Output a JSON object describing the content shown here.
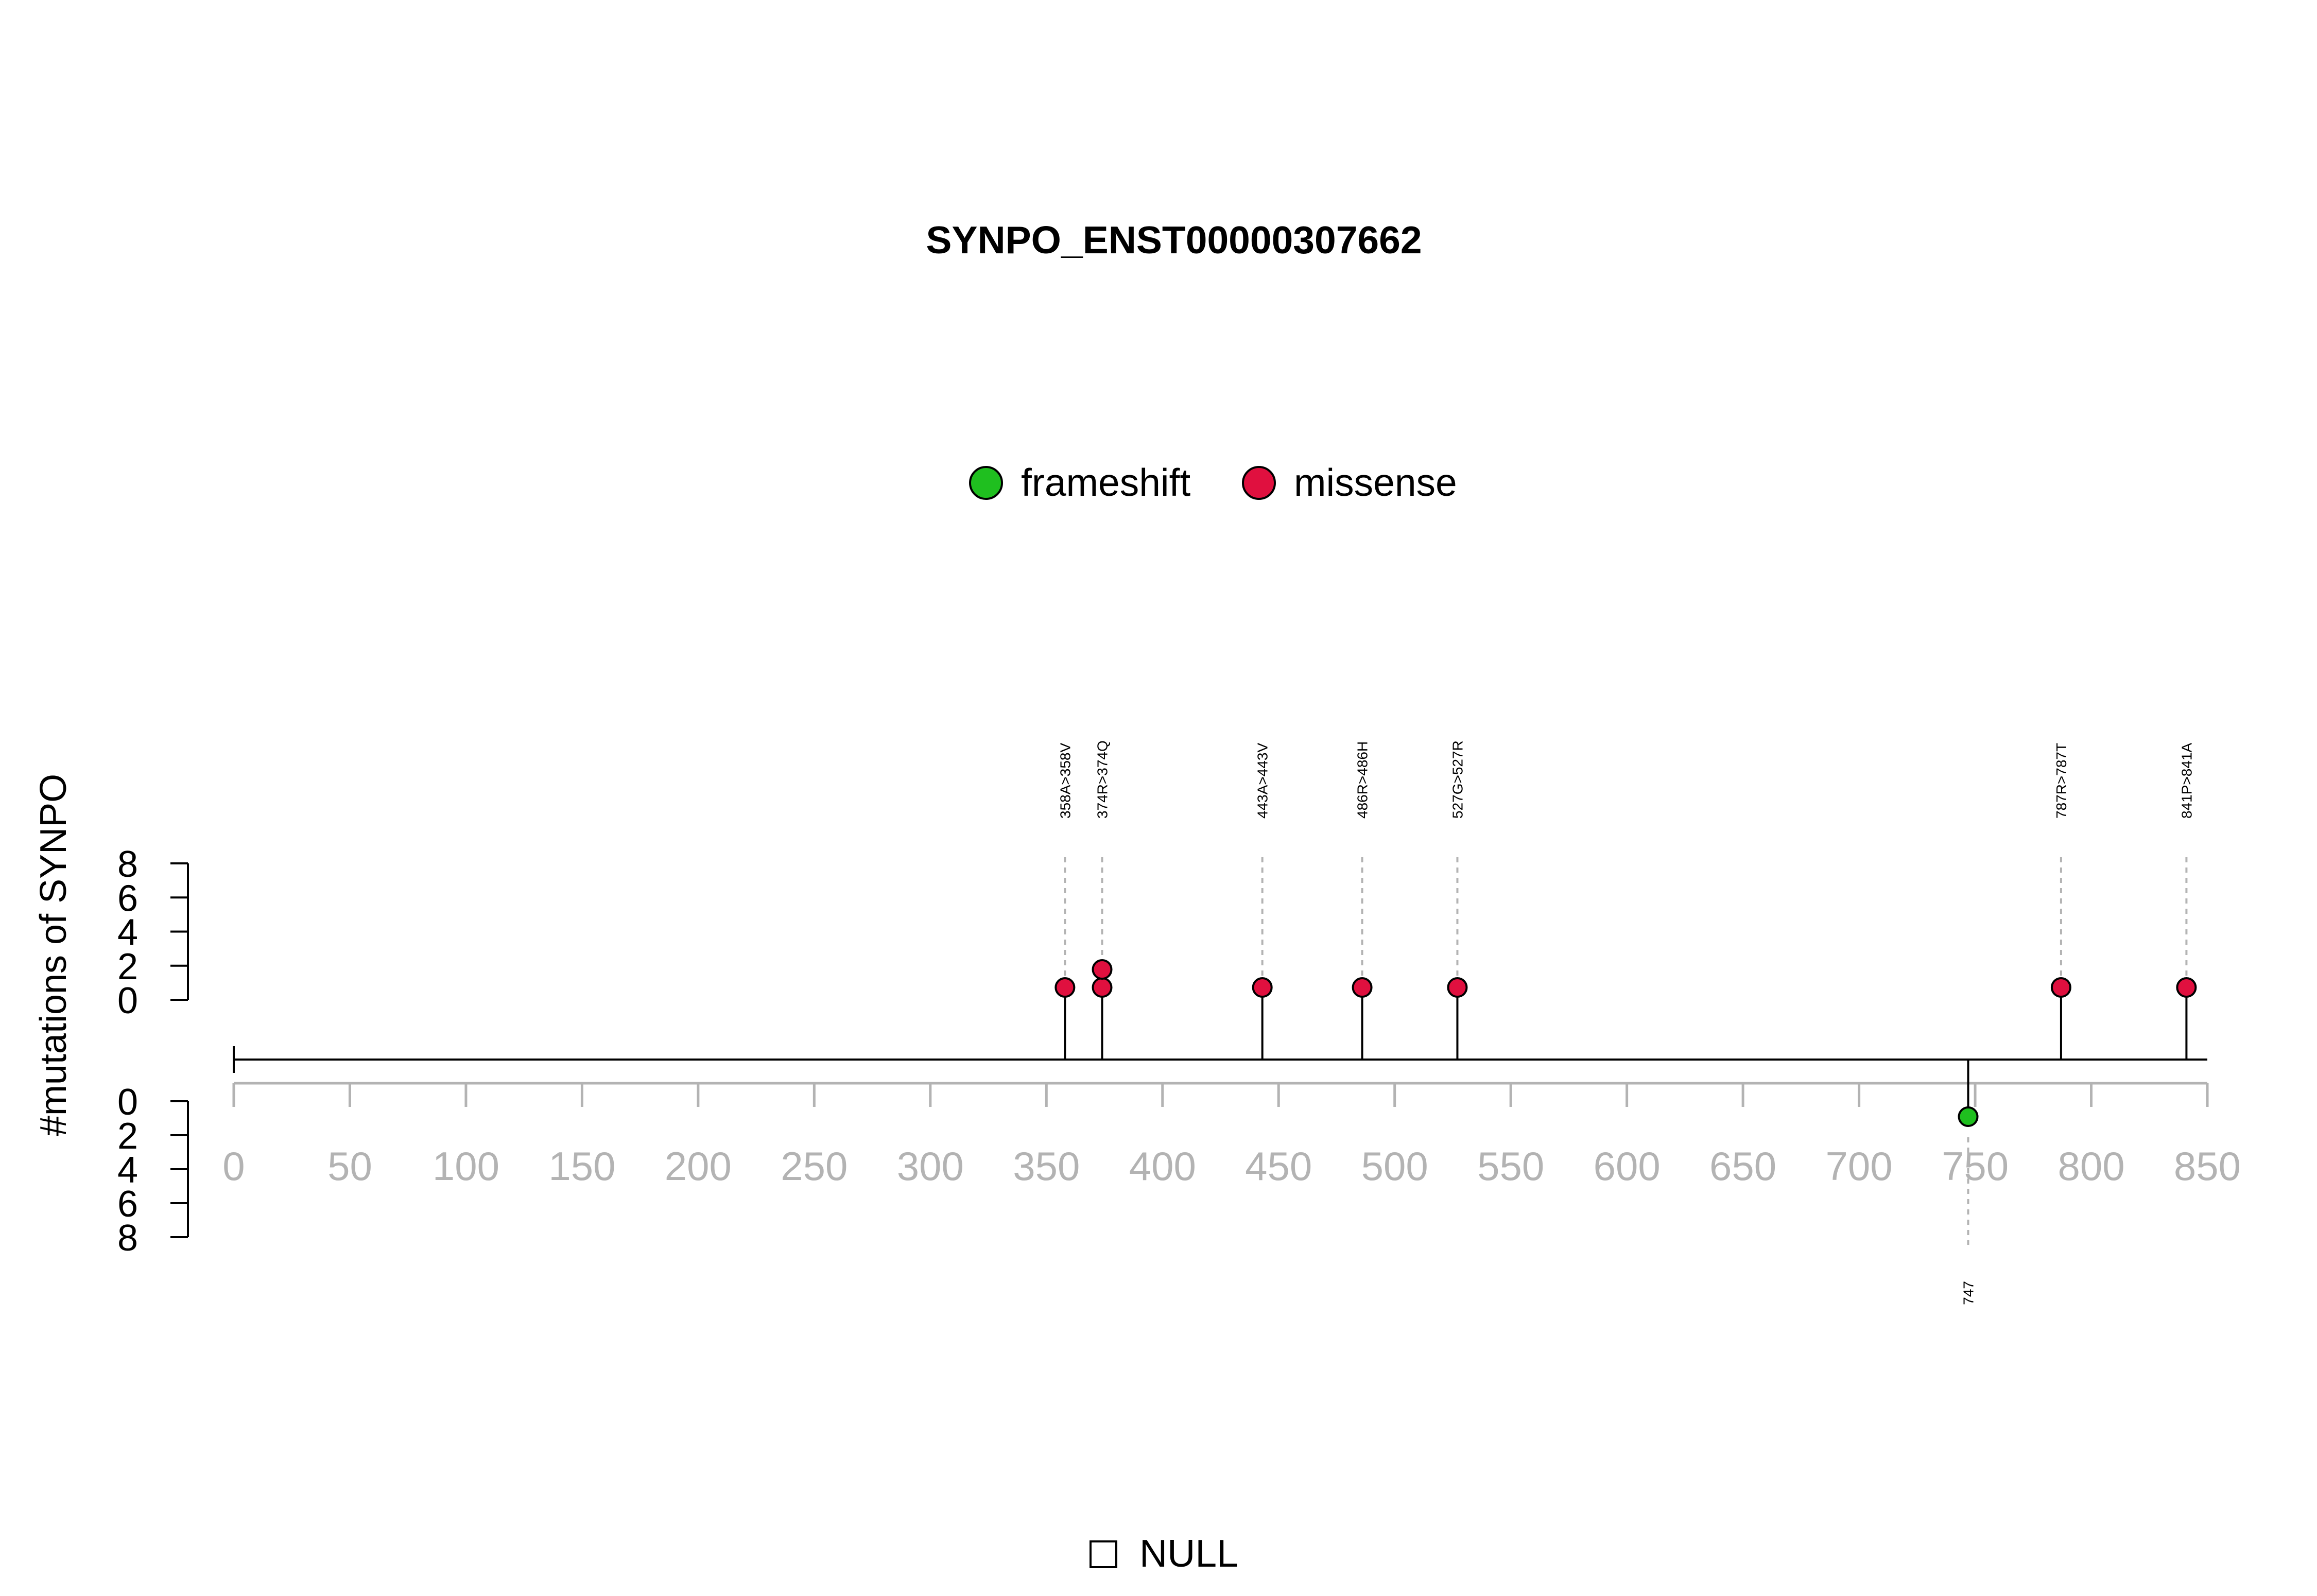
{
  "chart_data": {
    "type": "lollipop",
    "title": "SYNPO_ENST00000307662",
    "ylabel": "#mutations of SYNPO",
    "xlim": [
      0,
      850
    ],
    "x_ticks": [
      "0",
      "50",
      "100",
      "150",
      "200",
      "250",
      "300",
      "350",
      "400",
      "450",
      "500",
      "550",
      "600",
      "650",
      "700",
      "750",
      "800",
      "850"
    ],
    "y_ticks_top": [
      "0",
      "2",
      "4",
      "6",
      "8"
    ],
    "y_ticks_bottom": [
      "0",
      "2",
      "4",
      "6",
      "8"
    ],
    "ylim": [
      0,
      8
    ],
    "legend": [
      {
        "name": "frameshift",
        "color": "#1fbf1f"
      },
      {
        "name": "missense",
        "color": "#e0103f"
      }
    ],
    "bottom_legend": {
      "label": "NULL",
      "symbol": "empty-square"
    },
    "mutations_top": [
      {
        "pos": 358,
        "label": "358A>358V",
        "type": "missense",
        "count": 1
      },
      {
        "pos": 374,
        "label": "374R>374Q",
        "type": "missense",
        "count": 2
      },
      {
        "pos": 443,
        "label": "443A>443V",
        "type": "missense",
        "count": 1
      },
      {
        "pos": 486,
        "label": "486R>486H",
        "type": "missense",
        "count": 1
      },
      {
        "pos": 527,
        "label": "527G>527R",
        "type": "missense",
        "count": 1
      },
      {
        "pos": 787,
        "label": "787R>787T",
        "type": "missense",
        "count": 1
      },
      {
        "pos": 841,
        "label": "841P>841A",
        "type": "missense",
        "count": 1
      }
    ],
    "mutations_bottom": [
      {
        "pos": 747,
        "label": "747",
        "type": "frameshift",
        "count": 1
      }
    ]
  }
}
